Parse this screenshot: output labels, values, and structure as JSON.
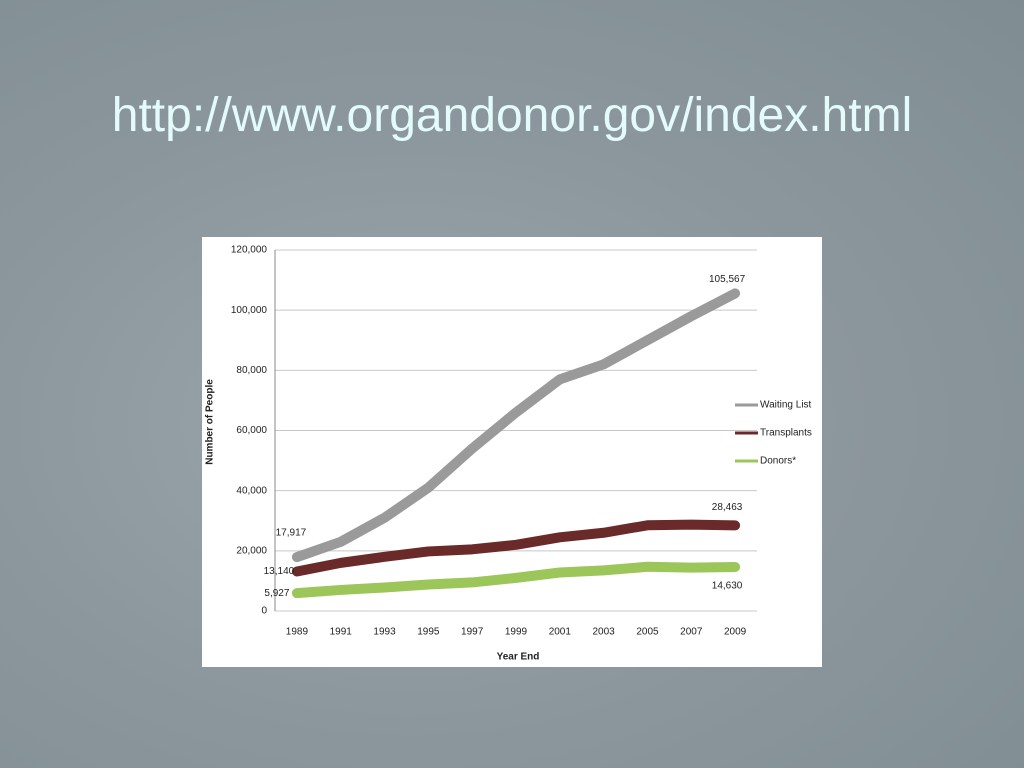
{
  "slide_title": "http://www.organdonor.gov/index.html",
  "chart_data": {
    "type": "line",
    "categories": [
      "1989",
      "1991",
      "1993",
      "1995",
      "1997",
      "1999",
      "2001",
      "2003",
      "2005",
      "2007",
      "2009"
    ],
    "series": [
      {
        "name": "Waiting List",
        "color": "#9a9a9a",
        "values": [
          17917,
          23000,
          31000,
          41000,
          54000,
          66000,
          77000,
          82000,
          90000,
          98000,
          105567
        ],
        "value_labels": [
          "17,917",
          null,
          null,
          null,
          null,
          null,
          null,
          null,
          null,
          null,
          "105,567"
        ]
      },
      {
        "name": "Transplants",
        "color": "#6a2a2a",
        "values": [
          13140,
          16000,
          18000,
          19800,
          20500,
          22000,
          24500,
          26000,
          28500,
          28700,
          28463
        ],
        "value_labels": [
          "13,140",
          null,
          null,
          null,
          null,
          null,
          null,
          null,
          null,
          null,
          "28,463"
        ]
      },
      {
        "name": "Donors*",
        "color": "#9cc55a",
        "values": [
          5927,
          7000,
          7800,
          8800,
          9500,
          11000,
          12800,
          13500,
          14700,
          14400,
          14630
        ],
        "value_labels": [
          "5,927",
          null,
          null,
          null,
          null,
          null,
          null,
          null,
          null,
          null,
          "14,630"
        ]
      }
    ],
    "y_label": "Number of People",
    "x_label": "Year End",
    "ylim": [
      0,
      120000
    ],
    "yticks": [
      0,
      {
        "value": 20000,
        "label": "20,000"
      },
      {
        "value": 40000,
        "label": "40,000"
      },
      {
        "value": 60000,
        "label": "60,000"
      },
      {
        "value": 80000,
        "label": "80,000"
      },
      {
        "value": 100000,
        "label": "100,000"
      },
      {
        "value": 120000,
        "label": "120,000"
      }
    ],
    "grid": true,
    "legend": "right"
  }
}
